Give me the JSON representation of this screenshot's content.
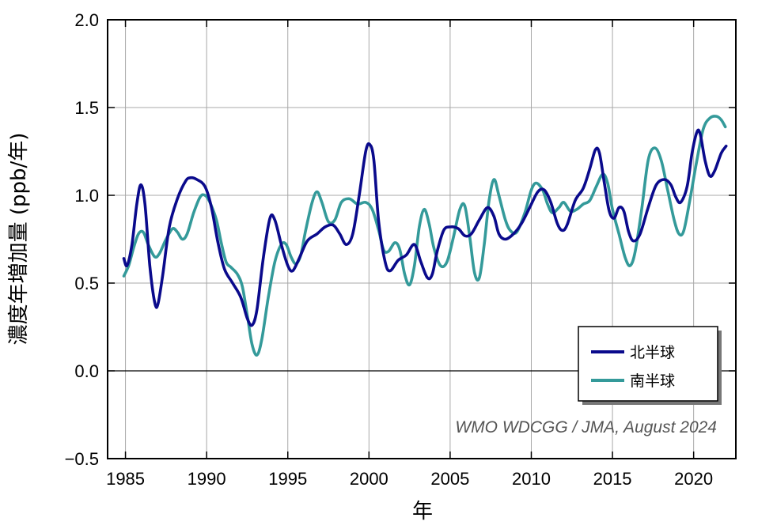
{
  "chart_data": {
    "type": "line",
    "title": "",
    "xlabel": "年",
    "ylabel": "濃度年増加量 (ppb/年)",
    "xlim": [
      1983.9,
      2022.6
    ],
    "ylim": [
      -0.5,
      2.0
    ],
    "xticks": [
      1985,
      1990,
      1995,
      2000,
      2005,
      2010,
      2015,
      2020
    ],
    "yticks": [
      -0.5,
      0.0,
      0.5,
      1.0,
      1.5,
      2.0
    ],
    "ytick_labels": [
      "−0.5",
      "0.0",
      "0.5",
      "1.0",
      "1.5",
      "2.0"
    ],
    "grid": true,
    "zero_line": true,
    "legend_position": "bottom-right",
    "credit": "WMO WDCGG / JMA, August 2024",
    "series": [
      {
        "name": "北半球",
        "color": "#0a0a8c",
        "points": [
          [
            1984.9,
            0.64
          ],
          [
            1985.1,
            0.6
          ],
          [
            1985.4,
            0.72
          ],
          [
            1985.7,
            0.95
          ],
          [
            1985.95,
            1.06
          ],
          [
            1986.2,
            0.95
          ],
          [
            1986.5,
            0.6
          ],
          [
            1986.8,
            0.39
          ],
          [
            1987.0,
            0.38
          ],
          [
            1987.3,
            0.55
          ],
          [
            1987.7,
            0.82
          ],
          [
            1988.2,
            0.98
          ],
          [
            1988.7,
            1.08
          ],
          [
            1989.0,
            1.1
          ],
          [
            1989.4,
            1.09
          ],
          [
            1989.9,
            1.05
          ],
          [
            1990.3,
            0.93
          ],
          [
            1990.7,
            0.73
          ],
          [
            1991.1,
            0.58
          ],
          [
            1991.6,
            0.5
          ],
          [
            1992.1,
            0.42
          ],
          [
            1992.5,
            0.3
          ],
          [
            1992.8,
            0.26
          ],
          [
            1993.1,
            0.35
          ],
          [
            1993.5,
            0.65
          ],
          [
            1993.9,
            0.87
          ],
          [
            1994.2,
            0.86
          ],
          [
            1994.6,
            0.72
          ],
          [
            1995.0,
            0.6
          ],
          [
            1995.3,
            0.57
          ],
          [
            1995.7,
            0.64
          ],
          [
            1996.2,
            0.74
          ],
          [
            1996.8,
            0.78
          ],
          [
            1997.3,
            0.82
          ],
          [
            1997.8,
            0.83
          ],
          [
            1998.2,
            0.78
          ],
          [
            1998.6,
            0.72
          ],
          [
            1999.0,
            0.78
          ],
          [
            1999.4,
            1.0
          ],
          [
            1999.8,
            1.25
          ],
          [
            2000.05,
            1.29
          ],
          [
            2000.3,
            1.2
          ],
          [
            2000.6,
            0.85
          ],
          [
            2001.0,
            0.62
          ],
          [
            2001.3,
            0.57
          ],
          [
            2001.8,
            0.63
          ],
          [
            2002.3,
            0.66
          ],
          [
            2002.8,
            0.72
          ],
          [
            2003.2,
            0.62
          ],
          [
            2003.6,
            0.53
          ],
          [
            2003.9,
            0.55
          ],
          [
            2004.2,
            0.68
          ],
          [
            2004.6,
            0.8
          ],
          [
            2005.0,
            0.82
          ],
          [
            2005.5,
            0.81
          ],
          [
            2005.9,
            0.77
          ],
          [
            2006.3,
            0.78
          ],
          [
            2006.8,
            0.86
          ],
          [
            2007.3,
            0.93
          ],
          [
            2007.7,
            0.88
          ],
          [
            2008.0,
            0.78
          ],
          [
            2008.4,
            0.75
          ],
          [
            2008.9,
            0.78
          ],
          [
            2009.4,
            0.84
          ],
          [
            2009.9,
            0.93
          ],
          [
            2010.4,
            1.02
          ],
          [
            2010.8,
            1.03
          ],
          [
            2011.2,
            0.96
          ],
          [
            2011.6,
            0.84
          ],
          [
            2011.9,
            0.8
          ],
          [
            2012.2,
            0.83
          ],
          [
            2012.7,
            0.97
          ],
          [
            2013.2,
            1.04
          ],
          [
            2013.6,
            1.15
          ],
          [
            2013.95,
            1.26
          ],
          [
            2014.2,
            1.24
          ],
          [
            2014.5,
            1.07
          ],
          [
            2014.8,
            0.91
          ],
          [
            2015.1,
            0.87
          ],
          [
            2015.4,
            0.93
          ],
          [
            2015.7,
            0.91
          ],
          [
            2016.0,
            0.79
          ],
          [
            2016.3,
            0.74
          ],
          [
            2016.7,
            0.78
          ],
          [
            2017.2,
            0.93
          ],
          [
            2017.7,
            1.06
          ],
          [
            2018.2,
            1.09
          ],
          [
            2018.6,
            1.06
          ],
          [
            2018.9,
            0.99
          ],
          [
            2019.2,
            0.96
          ],
          [
            2019.6,
            1.05
          ],
          [
            2019.9,
            1.24
          ],
          [
            2020.2,
            1.36
          ],
          [
            2020.4,
            1.35
          ],
          [
            2020.7,
            1.2
          ],
          [
            2021.0,
            1.11
          ],
          [
            2021.3,
            1.14
          ],
          [
            2021.7,
            1.24
          ],
          [
            2022.0,
            1.28
          ]
        ]
      },
      {
        "name": "南半球",
        "color": "#349a9a",
        "points": [
          [
            1984.9,
            0.54
          ],
          [
            1985.2,
            0.6
          ],
          [
            1985.5,
            0.7
          ],
          [
            1985.8,
            0.78
          ],
          [
            1986.1,
            0.79
          ],
          [
            1986.4,
            0.72
          ],
          [
            1986.8,
            0.65
          ],
          [
            1987.1,
            0.67
          ],
          [
            1987.5,
            0.75
          ],
          [
            1987.9,
            0.81
          ],
          [
            1988.2,
            0.79
          ],
          [
            1988.5,
            0.75
          ],
          [
            1988.8,
            0.78
          ],
          [
            1989.2,
            0.9
          ],
          [
            1989.6,
            0.99
          ],
          [
            1989.9,
            1.0
          ],
          [
            1990.2,
            0.96
          ],
          [
            1990.6,
            0.86
          ],
          [
            1990.9,
            0.73
          ],
          [
            1991.2,
            0.62
          ],
          [
            1991.5,
            0.59
          ],
          [
            1991.9,
            0.55
          ],
          [
            1992.2,
            0.48
          ],
          [
            1992.5,
            0.32
          ],
          [
            1992.8,
            0.15
          ],
          [
            1993.1,
            0.09
          ],
          [
            1993.4,
            0.18
          ],
          [
            1993.8,
            0.42
          ],
          [
            1994.2,
            0.62
          ],
          [
            1994.6,
            0.72
          ],
          [
            1994.9,
            0.72
          ],
          [
            1995.2,
            0.65
          ],
          [
            1995.5,
            0.61
          ],
          [
            1995.8,
            0.66
          ],
          [
            1996.1,
            0.8
          ],
          [
            1996.5,
            0.96
          ],
          [
            1996.8,
            1.02
          ],
          [
            1997.1,
            0.96
          ],
          [
            1997.5,
            0.85
          ],
          [
            1997.9,
            0.86
          ],
          [
            1998.3,
            0.96
          ],
          [
            1998.8,
            0.98
          ],
          [
            1999.3,
            0.95
          ],
          [
            1999.8,
            0.96
          ],
          [
            2000.2,
            0.92
          ],
          [
            2000.6,
            0.8
          ],
          [
            2000.9,
            0.69
          ],
          [
            2001.2,
            0.68
          ],
          [
            2001.6,
            0.73
          ],
          [
            2001.9,
            0.69
          ],
          [
            2002.2,
            0.55
          ],
          [
            2002.5,
            0.49
          ],
          [
            2002.8,
            0.6
          ],
          [
            2003.1,
            0.82
          ],
          [
            2003.4,
            0.92
          ],
          [
            2003.7,
            0.84
          ],
          [
            2004.0,
            0.7
          ],
          [
            2004.4,
            0.6
          ],
          [
            2004.8,
            0.62
          ],
          [
            2005.2,
            0.76
          ],
          [
            2005.6,
            0.92
          ],
          [
            2005.9,
            0.94
          ],
          [
            2006.2,
            0.77
          ],
          [
            2006.5,
            0.56
          ],
          [
            2006.8,
            0.53
          ],
          [
            2007.1,
            0.72
          ],
          [
            2007.4,
            0.97
          ],
          [
            2007.7,
            1.09
          ],
          [
            2008.0,
            1.0
          ],
          [
            2008.4,
            0.86
          ],
          [
            2008.7,
            0.8
          ],
          [
            2009.1,
            0.79
          ],
          [
            2009.6,
            0.9
          ],
          [
            2010.0,
            1.03
          ],
          [
            2010.3,
            1.07
          ],
          [
            2010.7,
            1.03
          ],
          [
            2011.0,
            0.95
          ],
          [
            2011.3,
            0.9
          ],
          [
            2011.7,
            0.93
          ],
          [
            2012.0,
            0.96
          ],
          [
            2012.4,
            0.91
          ],
          [
            2012.8,
            0.92
          ],
          [
            2013.2,
            0.95
          ],
          [
            2013.6,
            0.97
          ],
          [
            2014.0,
            1.05
          ],
          [
            2014.4,
            1.12
          ],
          [
            2014.7,
            1.07
          ],
          [
            2015.0,
            0.92
          ],
          [
            2015.4,
            0.78
          ],
          [
            2015.8,
            0.64
          ],
          [
            2016.1,
            0.6
          ],
          [
            2016.4,
            0.68
          ],
          [
            2016.8,
            0.92
          ],
          [
            2017.2,
            1.2
          ],
          [
            2017.6,
            1.27
          ],
          [
            2018.0,
            1.2
          ],
          [
            2018.4,
            1.03
          ],
          [
            2018.8,
            0.86
          ],
          [
            2019.1,
            0.78
          ],
          [
            2019.4,
            0.8
          ],
          [
            2019.8,
            0.99
          ],
          [
            2020.2,
            1.2
          ],
          [
            2020.6,
            1.38
          ],
          [
            2021.0,
            1.44
          ],
          [
            2021.4,
            1.45
          ],
          [
            2021.7,
            1.43
          ],
          [
            2021.95,
            1.39
          ]
        ]
      }
    ]
  }
}
